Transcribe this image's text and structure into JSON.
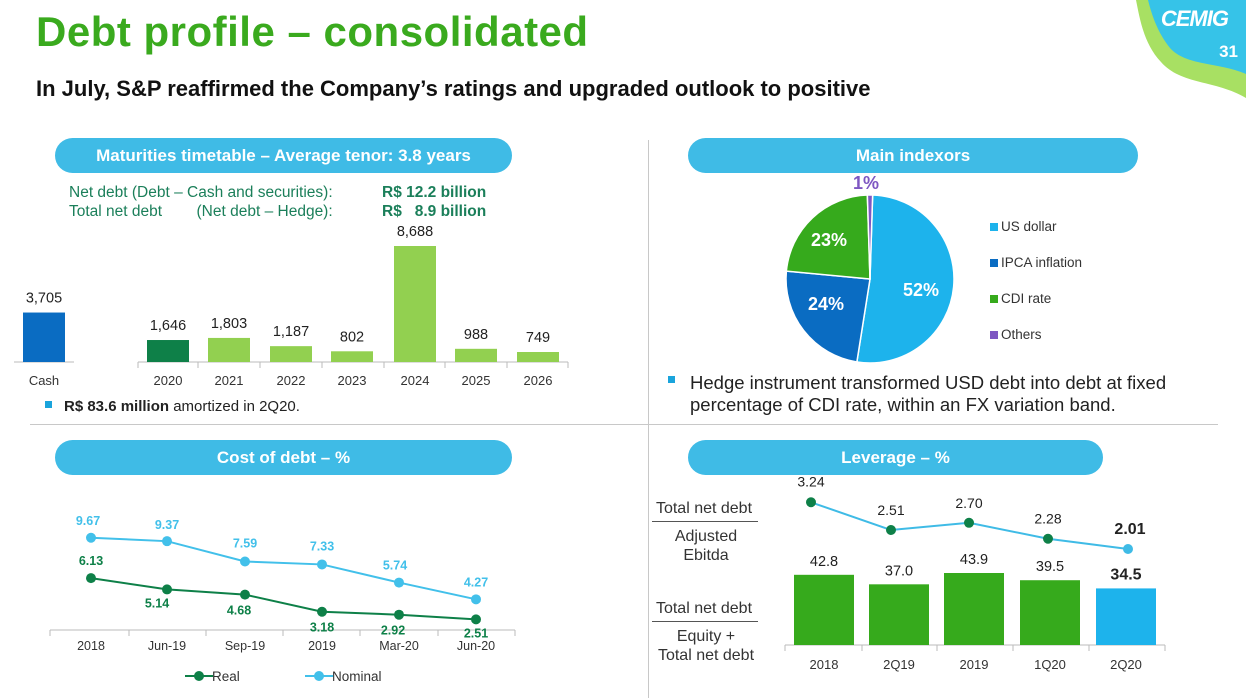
{
  "page": {
    "title": "Debt profile – consolidated",
    "subtitle": "In July, S&P reaffirmed the Company’s ratings and upgraded outlook to positive",
    "logo": "CEMIG",
    "page_number": "31"
  },
  "colors": {
    "title_green": "#3aaa1e",
    "pill_blue": "#3fbbe6",
    "dark_blue": "#0a6cc2",
    "dark_green": "#0e8048",
    "light_green": "#92d050",
    "bright_green": "#36aa1c",
    "sky_blue": "#1db3ec"
  },
  "maturities": {
    "header": "Maturities timetable – Average tenor: 3.8 years",
    "net_debt_label": "Net debt (Debt – Cash and securities):",
    "net_debt_value": "R$ 12.2 billion",
    "total_net_debt_label": "Total net debt        (Net debt – Hedge):",
    "total_net_debt_value": "R$   8.9 billion",
    "bullet_bold": "R$ 83.6 million",
    "bullet_rest": " amortized in 2Q20."
  },
  "indexors": {
    "header": "Main indexors",
    "hedge_note": "Hedge instrument transformed USD debt into debt at fixed percentage of CDI rate, within an FX variation band."
  },
  "cost": {
    "header": "Cost of debt – %",
    "legend_real": "Real",
    "legend_nominal": "Nominal"
  },
  "leverage": {
    "header": "Leverage – %",
    "ratio1_numerator": "Total net debt",
    "ratio1_denominator_a": "Adjusted",
    "ratio1_denominator_b": "Ebitda",
    "ratio2_numerator": "Total net debt",
    "ratio2_denominator_a": "Equity +",
    "ratio2_denominator_b": "Total net debt"
  },
  "chart_data": [
    {
      "id": "maturities",
      "type": "bar",
      "categories": [
        "Cash",
        "2020",
        "2021",
        "2022",
        "2023",
        "2024",
        "2025",
        "2026"
      ],
      "values": [
        3705,
        1646,
        1803,
        1187,
        802,
        8688,
        988,
        749
      ],
      "labels": [
        "3,705",
        "1,646",
        "1,803",
        "1,187",
        "802",
        "8,688",
        "988",
        "749"
      ],
      "bar_colors": [
        "#0a6cc2",
        "#0e8048",
        "#92d050",
        "#92d050",
        "#92d050",
        "#92d050",
        "#92d050",
        "#92d050"
      ],
      "ylim": [
        0,
        9000
      ]
    },
    {
      "id": "indexors",
      "type": "pie",
      "slices": [
        {
          "name": "US dollar",
          "value": 52,
          "label": "52%",
          "color": "#1db3ec"
        },
        {
          "name": "IPCA inflation",
          "value": 24,
          "label": "24%",
          "color": "#0a6cc2"
        },
        {
          "name": "CDI rate",
          "value": 23,
          "label": "23%",
          "color": "#36aa1c"
        },
        {
          "name": "Others",
          "value": 1,
          "label": "1%",
          "color": "#7e57c2"
        }
      ],
      "legend_placement": "right"
    },
    {
      "id": "cost_of_debt",
      "type": "line",
      "categories": [
        "2018",
        "Jun-19",
        "Sep-19",
        "2019",
        "Mar-20",
        "Jun-20"
      ],
      "series": [
        {
          "name": "Real",
          "values": [
            6.13,
            5.14,
            4.68,
            3.18,
            2.92,
            2.51
          ],
          "labels": [
            "6.13",
            "5.14",
            "4.68",
            "3.18",
            "2.92",
            "2.51"
          ],
          "color": "#0e8048"
        },
        {
          "name": "Nominal",
          "values": [
            9.67,
            9.37,
            7.59,
            7.33,
            5.74,
            4.27
          ],
          "labels": [
            "9.67",
            "9.37",
            "7.59",
            "7.33",
            "5.74",
            "4.27"
          ],
          "color": "#42c0ea"
        }
      ],
      "ylim": [
        0,
        11
      ],
      "legend_placement": "bottom"
    },
    {
      "id": "leverage",
      "type": "bar",
      "categories": [
        "2018",
        "2Q19",
        "2019",
        "1Q20",
        "2Q20"
      ],
      "series": [
        {
          "name": "Total net debt / Equity + Total net debt",
          "values": [
            42.8,
            37.0,
            43.9,
            39.5,
            34.5
          ],
          "labels": [
            "42.8",
            "37.0",
            "43.9",
            "39.5",
            "34.5"
          ],
          "colors": [
            "#36aa1c",
            "#36aa1c",
            "#36aa1c",
            "#36aa1c",
            "#1db3ec"
          ]
        },
        {
          "name": "Total net debt / Adjusted Ebitda",
          "values": [
            3.24,
            2.51,
            2.7,
            2.28,
            2.01
          ],
          "labels": [
            "3.24",
            "2.51",
            "2.70",
            "2.28",
            "2.01"
          ],
          "color": "#3fbbe6"
        }
      ]
    }
  ]
}
